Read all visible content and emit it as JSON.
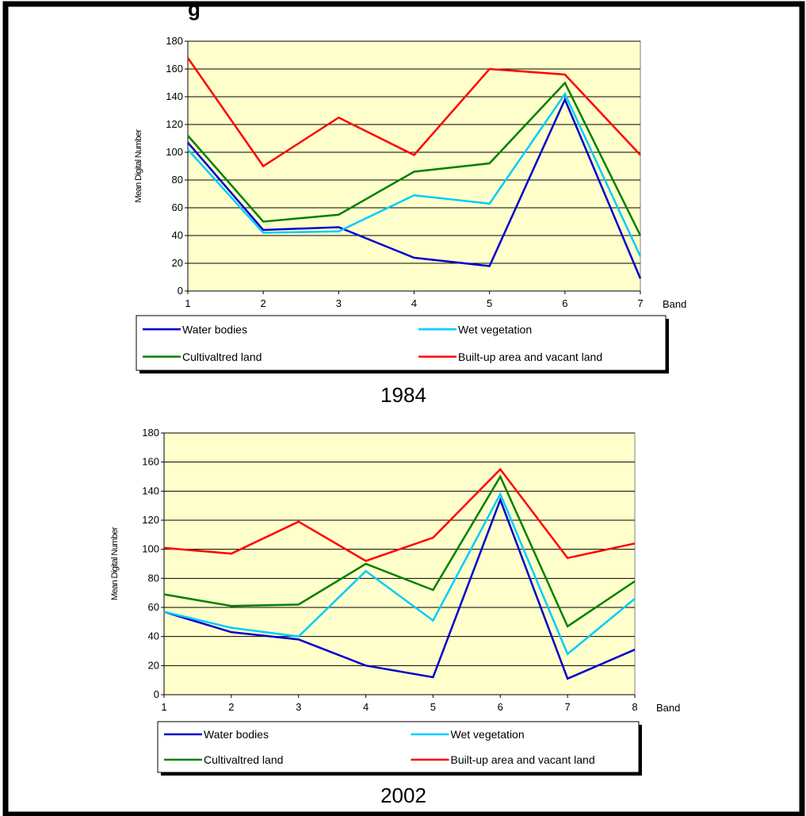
{
  "header_fragment": "g",
  "colors": {
    "plot_background": "#FFFFCC",
    "water": "#0000CC",
    "wet": "#00CCFF",
    "cultivated": "#008000",
    "builtup": "#FF0000"
  },
  "chart_data": [
    {
      "type": "line",
      "year_label": "1984",
      "xlabel": "Band",
      "ylabel": "Mean Digital Number",
      "ylim": [
        0,
        180
      ],
      "yticks": [
        0,
        20,
        40,
        60,
        80,
        100,
        120,
        140,
        160,
        180
      ],
      "x": [
        1,
        2,
        3,
        4,
        5,
        6,
        7
      ],
      "grid": true,
      "legend_placement": "bottom",
      "series": [
        {
          "name": "Water bodies",
          "color": "#0000CC",
          "values": [
            107,
            44,
            46,
            24,
            18,
            138,
            9
          ]
        },
        {
          "name": "Wet vegetation",
          "color": "#00CCFF",
          "values": [
            102,
            42,
            43,
            69,
            63,
            142,
            25
          ]
        },
        {
          "name": "Cultivaltred land",
          "color": "#008000",
          "values": [
            112,
            50,
            55,
            86,
            92,
            150,
            40
          ]
        },
        {
          "name": "Built-up area and vacant land",
          "color": "#FF0000",
          "values": [
            168,
            90,
            125,
            98,
            160,
            156,
            98
          ]
        }
      ]
    },
    {
      "type": "line",
      "year_label": "2002",
      "xlabel": "Band",
      "ylabel": "Mean Digital Number",
      "ylim": [
        0,
        180
      ],
      "yticks": [
        0,
        20,
        40,
        60,
        80,
        100,
        120,
        140,
        160,
        180
      ],
      "x": [
        1,
        2,
        3,
        4,
        5,
        6,
        7,
        8
      ],
      "grid": true,
      "legend_placement": "bottom",
      "series": [
        {
          "name": "Water bodies",
          "color": "#0000CC",
          "values": [
            57,
            43,
            38,
            20,
            12,
            134,
            11,
            31
          ]
        },
        {
          "name": "Wet vegetation",
          "color": "#00CCFF",
          "values": [
            57,
            46,
            40,
            85,
            51,
            138,
            28,
            66
          ]
        },
        {
          "name": "Cultivaltred land",
          "color": "#008000",
          "values": [
            69,
            61,
            62,
            90,
            72,
            150,
            47,
            78
          ]
        },
        {
          "name": "Built-up area and vacant land",
          "color": "#FF0000",
          "values": [
            101,
            97,
            119,
            92,
            108,
            155,
            94,
            104
          ]
        }
      ]
    }
  ]
}
